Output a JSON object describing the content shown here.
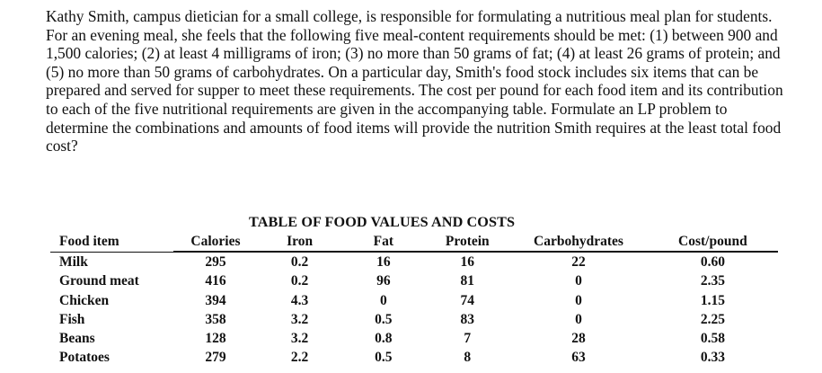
{
  "problem_text": "Kathy Smith, campus dietician for a small college, is responsible for formulating a nutritious meal plan for students. For an evening meal, she feels that the following five meal-content requirements should be met: (1) between 900 and 1,500 calories; (2) at least 4 milligrams of iron; (3) no more than 50 grams of fat; (4) at least 26 grams of protein; and (5) no more than 50 grams of carbohydrates. On a particular day, Smith's food stock includes six items that can be prepared and served for supper to meet these requirements. The cost per pound for each food item and its contribution to each of the five nutritional requirements are given in the accompanying table. Formulate an LP problem to determine the combinations and amounts of food items will provide the nutrition Smith requires at the least total food cost?",
  "table": {
    "title": "TABLE OF FOOD VALUES AND COSTS",
    "headers": {
      "food": "Food item",
      "calories": "Calories",
      "iron": "Iron",
      "fat": "Fat",
      "protein": "Protein",
      "carbs": "Carbohydrates",
      "cost": "Cost/pound"
    },
    "rows": [
      {
        "food": "Milk",
        "calories": "295",
        "iron": "0.2",
        "fat": "16",
        "protein": "16",
        "carbs": "22",
        "cost": "0.60"
      },
      {
        "food": "Ground meat",
        "calories": "416",
        "iron": "0.2",
        "fat": "96",
        "protein": "81",
        "carbs": "0",
        "cost": "2.35"
      },
      {
        "food": "Chicken",
        "calories": "394",
        "iron": "4.3",
        "fat": "0",
        "protein": "74",
        "carbs": "0",
        "cost": "1.15"
      },
      {
        "food": "Fish",
        "calories": "358",
        "iron": "3.2",
        "fat": "0.5",
        "protein": "83",
        "carbs": "0",
        "cost": "2.25"
      },
      {
        "food": "Beans",
        "calories": "128",
        "iron": "3.2",
        "fat": "0.8",
        "protein": "7",
        "carbs": "28",
        "cost": "0.58"
      },
      {
        "food": "Potatoes",
        "calories": "279",
        "iron": "2.2",
        "fat": "0.5",
        "protein": "8",
        "carbs": "63",
        "cost": "0.33"
      }
    ]
  }
}
